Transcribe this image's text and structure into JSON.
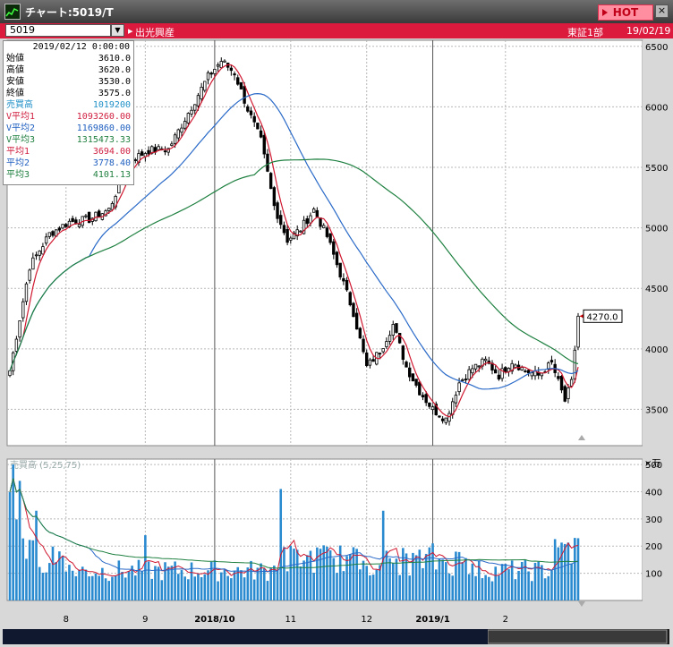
{
  "window": {
    "title": "チャート:5019/T",
    "hot_label": "HOT",
    "close_label": "×"
  },
  "code_bar": {
    "code": "5019",
    "name": "出光興産",
    "market": "東証1部",
    "date": "19/02/19"
  },
  "info_panel": {
    "date": "2019/02/12 0:00:00",
    "rows": [
      {
        "label": "始値",
        "value": "3610.0",
        "color": "#000000"
      },
      {
        "label": "高値",
        "value": "3620.0",
        "color": "#000000"
      },
      {
        "label": "安値",
        "value": "3530.0",
        "color": "#000000"
      },
      {
        "label": "終値",
        "value": "3575.0",
        "color": "#000000"
      },
      {
        "label": "売買高",
        "value": "1019200",
        "color": "#2090c8"
      },
      {
        "label": "V平均1",
        "value": "1093260.00",
        "color": "#d02040"
      },
      {
        "label": "V平均2",
        "value": "1169860.00",
        "color": "#2060c0"
      },
      {
        "label": "V平均3",
        "value": "1315473.33",
        "color": "#208040"
      },
      {
        "label": "平均1",
        "value": "3694.00",
        "color": "#d02040"
      },
      {
        "label": "平均2",
        "value": "3778.40",
        "color": "#2060c0"
      },
      {
        "label": "平均3",
        "value": "4101.13",
        "color": "#208040"
      }
    ]
  },
  "colors": {
    "ma1": "#d01830",
    "ma2": "#2a6ac8",
    "ma3": "#1e8040",
    "volume": "#2a8ad0",
    "background": "#ffffff",
    "grid": "#b8b8b8"
  },
  "chart_data": {
    "type": "candlestick",
    "price_axis": {
      "min": 3200,
      "max": 6550,
      "ticks": [
        3500,
        4000,
        4500,
        5000,
        5500,
        6000,
        6500
      ]
    },
    "x_ticks": [
      "8",
      "9",
      "2018/10",
      "11",
      "12",
      "2019/1",
      "2"
    ],
    "last_price_label": "4270.0",
    "moving_averages": [
      "平均1",
      "平均2",
      "平均3"
    ],
    "volume_panel": {
      "label": "売買高 (5,25,75)",
      "unit": "×万",
      "ylim": [
        0,
        520
      ],
      "ticks": [
        100,
        200,
        300,
        400,
        500
      ]
    },
    "anchors": [
      {
        "i": 0,
        "p": 3820
      },
      {
        "i": 6,
        "p": 4680
      },
      {
        "i": 12,
        "p": 4950
      },
      {
        "i": 18,
        "p": 5050
      },
      {
        "i": 24,
        "p": 5070
      },
      {
        "i": 30,
        "p": 5150
      },
      {
        "i": 36,
        "p": 5550
      },
      {
        "i": 42,
        "p": 5640
      },
      {
        "i": 48,
        "p": 5650
      },
      {
        "i": 54,
        "p": 5950
      },
      {
        "i": 60,
        "p": 6250
      },
      {
        "i": 64,
        "p": 6380
      },
      {
        "i": 68,
        "p": 6280
      },
      {
        "i": 72,
        "p": 5980
      },
      {
        "i": 76,
        "p": 5720
      },
      {
        "i": 80,
        "p": 5180
      },
      {
        "i": 84,
        "p": 4900
      },
      {
        "i": 88,
        "p": 4990
      },
      {
        "i": 92,
        "p": 5150
      },
      {
        "i": 96,
        "p": 4930
      },
      {
        "i": 100,
        "p": 4620
      },
      {
        "i": 104,
        "p": 4300
      },
      {
        "i": 108,
        "p": 3850
      },
      {
        "i": 112,
        "p": 3980
      },
      {
        "i": 116,
        "p": 4200
      },
      {
        "i": 120,
        "p": 3850
      },
      {
        "i": 124,
        "p": 3650
      },
      {
        "i": 128,
        "p": 3500
      },
      {
        "i": 132,
        "p": 3420
      },
      {
        "i": 136,
        "p": 3720
      },
      {
        "i": 140,
        "p": 3840
      },
      {
        "i": 144,
        "p": 3900
      },
      {
        "i": 148,
        "p": 3780
      },
      {
        "i": 152,
        "p": 3900
      },
      {
        "i": 156,
        "p": 3820
      },
      {
        "i": 160,
        "p": 3780
      },
      {
        "i": 164,
        "p": 3880
      },
      {
        "i": 168,
        "p": 3570
      },
      {
        "i": 170,
        "p": 3720
      },
      {
        "i": 172,
        "p": 4270
      }
    ]
  }
}
